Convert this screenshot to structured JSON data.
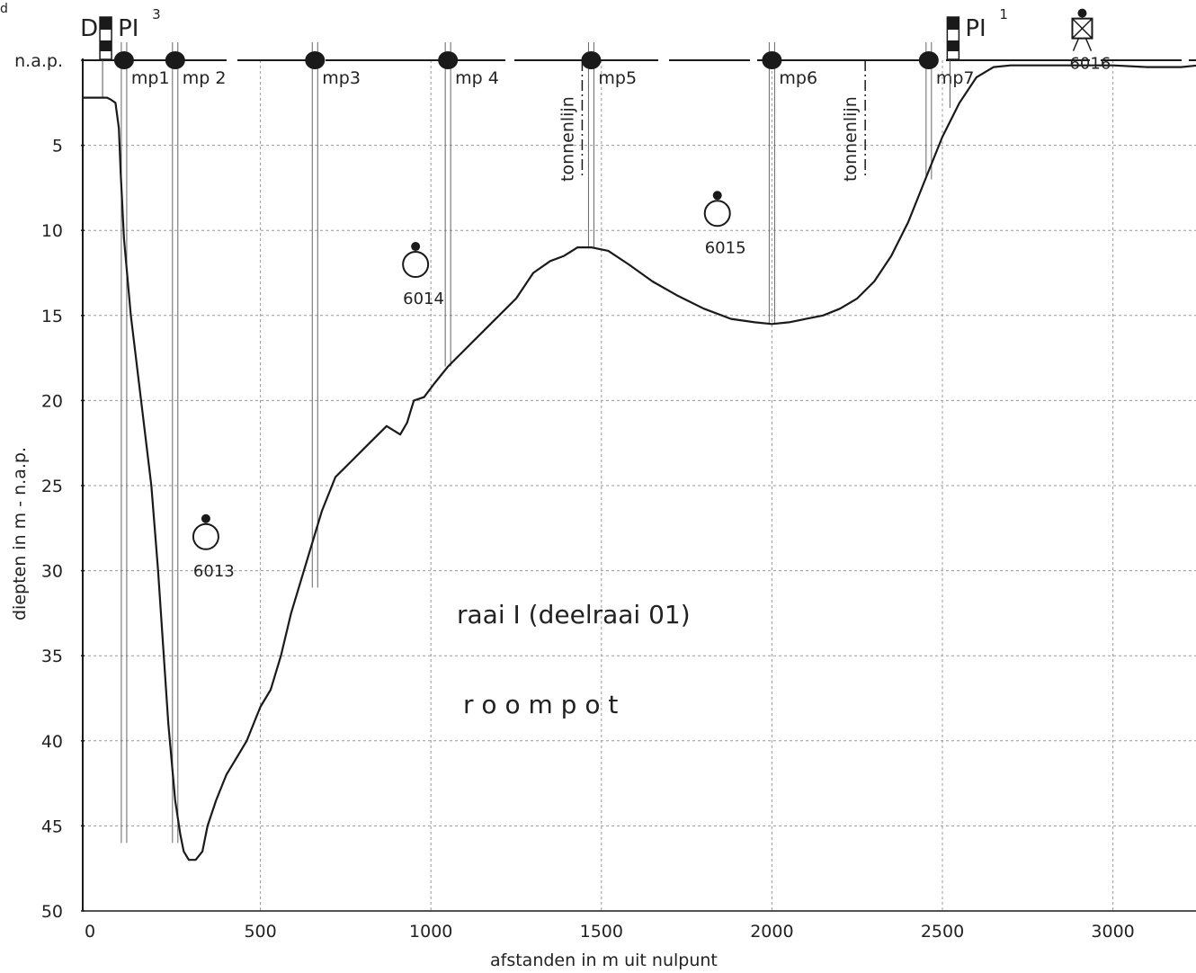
{
  "chart_data": {
    "type": "line",
    "title": "raai I (deelraai 01)",
    "subtitle": "r o o m p o t",
    "xlabel": "afstanden in m uit nulpunt",
    "ylabel": "diepten in m - n.a.p.",
    "xlim": [
      0,
      3250
    ],
    "ylim": [
      0,
      50
    ],
    "y_inverted": true,
    "grid": true,
    "x_ticks": [
      0,
      500,
      1000,
      1500,
      2000,
      2500,
      3000
    ],
    "x_tick_labels": [
      "0",
      "500",
      "1000",
      "1500",
      "2000",
      "2500",
      "3000"
    ],
    "y_ticks": [
      0,
      5,
      10,
      15,
      20,
      25,
      30,
      35,
      40,
      45,
      50
    ],
    "y_tick_labels": [
      "n.a.p.",
      "5",
      "10",
      "15",
      "20",
      "25",
      "30",
      "35",
      "40",
      "45",
      "50"
    ],
    "series": [
      {
        "x": [
          -20,
          50,
          60,
          75,
          85,
          90,
          100,
          120,
          150,
          180,
          200,
          230,
          250,
          265,
          275,
          290,
          310,
          330,
          345,
          370,
          400,
          430,
          460,
          490,
          500,
          530,
          560,
          590,
          620,
          650,
          680,
          720,
          770,
          820,
          870,
          910,
          930,
          950,
          980,
          1010,
          1050,
          1100,
          1150,
          1200,
          1250,
          1300,
          1350,
          1390,
          1430,
          1470,
          1520,
          1580,
          1650,
          1720,
          1800,
          1880,
          1950,
          2000,
          2050,
          2100,
          2150,
          2200,
          2250,
          2300,
          2350,
          2400,
          2450,
          2500,
          2550,
          2600,
          2650,
          2700,
          2800,
          2900,
          3000,
          3100,
          3200,
          3250
        ],
        "y": [
          2.2,
          2.2,
          2.3,
          2.5,
          4.0,
          6.5,
          10.5,
          15.0,
          20.0,
          25.0,
          30.0,
          39.0,
          43.5,
          45.5,
          46.5,
          47.0,
          47.0,
          46.5,
          45.0,
          43.5,
          42.0,
          41.0,
          40.0,
          38.5,
          38.0,
          37.0,
          35.0,
          32.5,
          30.5,
          28.5,
          26.5,
          24.5,
          23.5,
          22.5,
          21.5,
          22.0,
          21.3,
          20.0,
          19.8,
          19.0,
          18.0,
          17.0,
          16.0,
          15.0,
          14.0,
          12.5,
          11.8,
          11.5,
          11.0,
          11.0,
          11.2,
          12.0,
          13.0,
          13.8,
          14.6,
          15.2,
          15.4,
          15.5,
          15.4,
          15.2,
          15.0,
          14.6,
          14.0,
          13.0,
          11.5,
          9.5,
          7.0,
          4.5,
          2.5,
          1.0,
          0.4,
          0.3,
          0.3,
          0.3,
          0.3,
          0.4,
          0.4,
          0.3
        ]
      }
    ],
    "measuring_points": [
      {
        "label": "mp1",
        "x": 100
      },
      {
        "label": "mp 2",
        "x": 250
      },
      {
        "label": "mp3",
        "x": 660
      },
      {
        "label": "mp 4",
        "x": 1050
      },
      {
        "label": "mp5",
        "x": 1470
      },
      {
        "label": "mp6",
        "x": 2000
      },
      {
        "label": "mp7",
        "x": 2460
      }
    ],
    "tonnenlijn": [
      {
        "label": "tonnenlijn",
        "x": 1470
      },
      {
        "label": "tonnenlijn",
        "x": 2300
      }
    ],
    "stations": [
      {
        "label": "6013",
        "x": 340,
        "y": 28
      },
      {
        "label": "6014",
        "x": 955,
        "y": 12
      },
      {
        "label": "6015",
        "x": 1840,
        "y": 9
      },
      {
        "label": "6016",
        "x": 2910,
        "y": -1.5
      }
    ],
    "beacons": [
      {
        "label": "PI",
        "superscript": "3",
        "prefix": "D",
        "x": 45
      },
      {
        "label": "PI",
        "superscript": "1",
        "prefix": "",
        "x": 2530
      }
    ],
    "colors": {
      "line": "#1a1a1a",
      "grid": "#9a9a9a",
      "background": "#ffffff"
    }
  },
  "corner_mark": "d"
}
